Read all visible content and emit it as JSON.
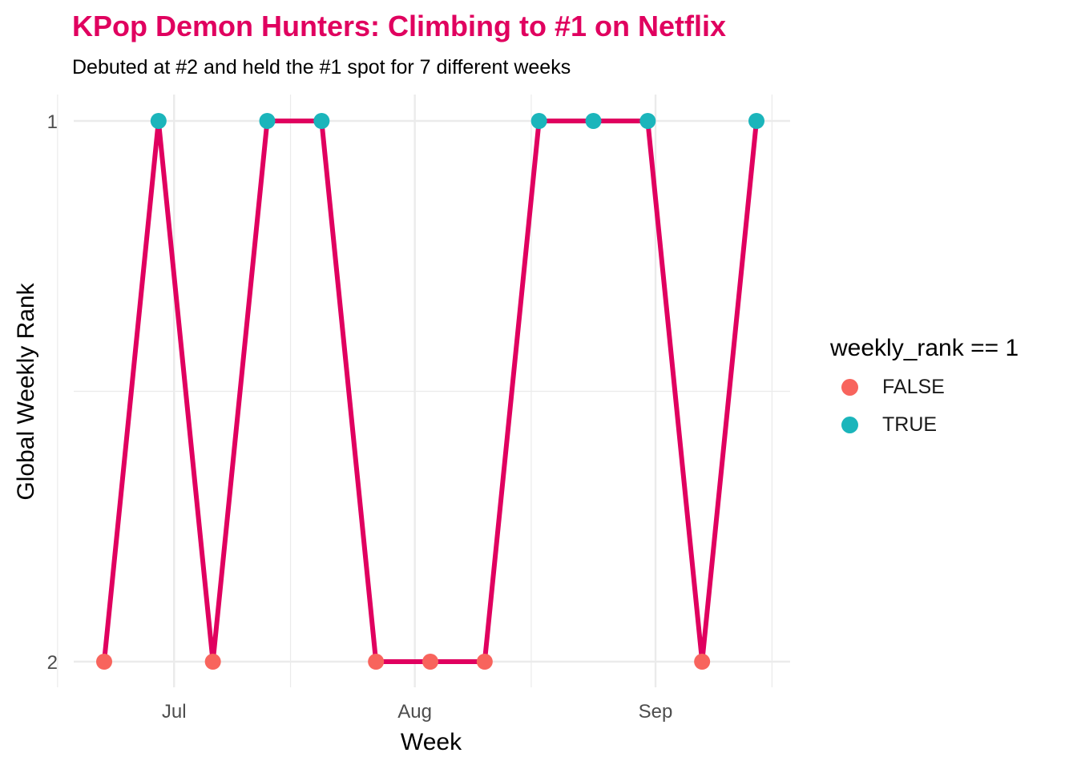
{
  "title": "KPop Demon Hunters: Climbing to #1 on Netflix",
  "subtitle": "Debuted at #2 and held the #1 spot for 7 different weeks",
  "colors": {
    "title": "#E0005F",
    "line": "#E0005F",
    "false_point": "#F8645D",
    "true_point": "#1BB5BB",
    "grid": "#EBEBEB"
  },
  "chart_data": {
    "type": "line",
    "title": "KPop Demon Hunters: Climbing to #1 on Netflix",
    "subtitle": "Debuted at #2 and held the #1 spot for 7 different weeks",
    "xlabel": "Week",
    "ylabel": "Global Weekly Rank",
    "x_ticks": [
      {
        "label": "Jul",
        "date": "2025-07-01"
      },
      {
        "label": "Aug",
        "date": "2025-08-01"
      },
      {
        "label": "Sep",
        "date": "2025-09-01"
      }
    ],
    "y_ticks": [
      "1",
      "2"
    ],
    "ylim": [
      2,
      1
    ],
    "y_reversed": true,
    "grid": true,
    "x": [
      "2025-06-22",
      "2025-06-29",
      "2025-07-06",
      "2025-07-13",
      "2025-07-20",
      "2025-07-27",
      "2025-08-03",
      "2025-08-10",
      "2025-08-17",
      "2025-08-24",
      "2025-08-31",
      "2025-09-07",
      "2025-09-14"
    ],
    "series": [
      {
        "values": [
          2,
          1,
          2,
          1,
          1,
          2,
          2,
          2,
          1,
          1,
          1,
          2,
          1
        ]
      }
    ],
    "legend": {
      "title": "weekly_rank == 1",
      "position": "right",
      "entries": [
        {
          "label": "FALSE",
          "color": "#F8645D"
        },
        {
          "label": "TRUE",
          "color": "#1BB5BB"
        }
      ]
    }
  }
}
